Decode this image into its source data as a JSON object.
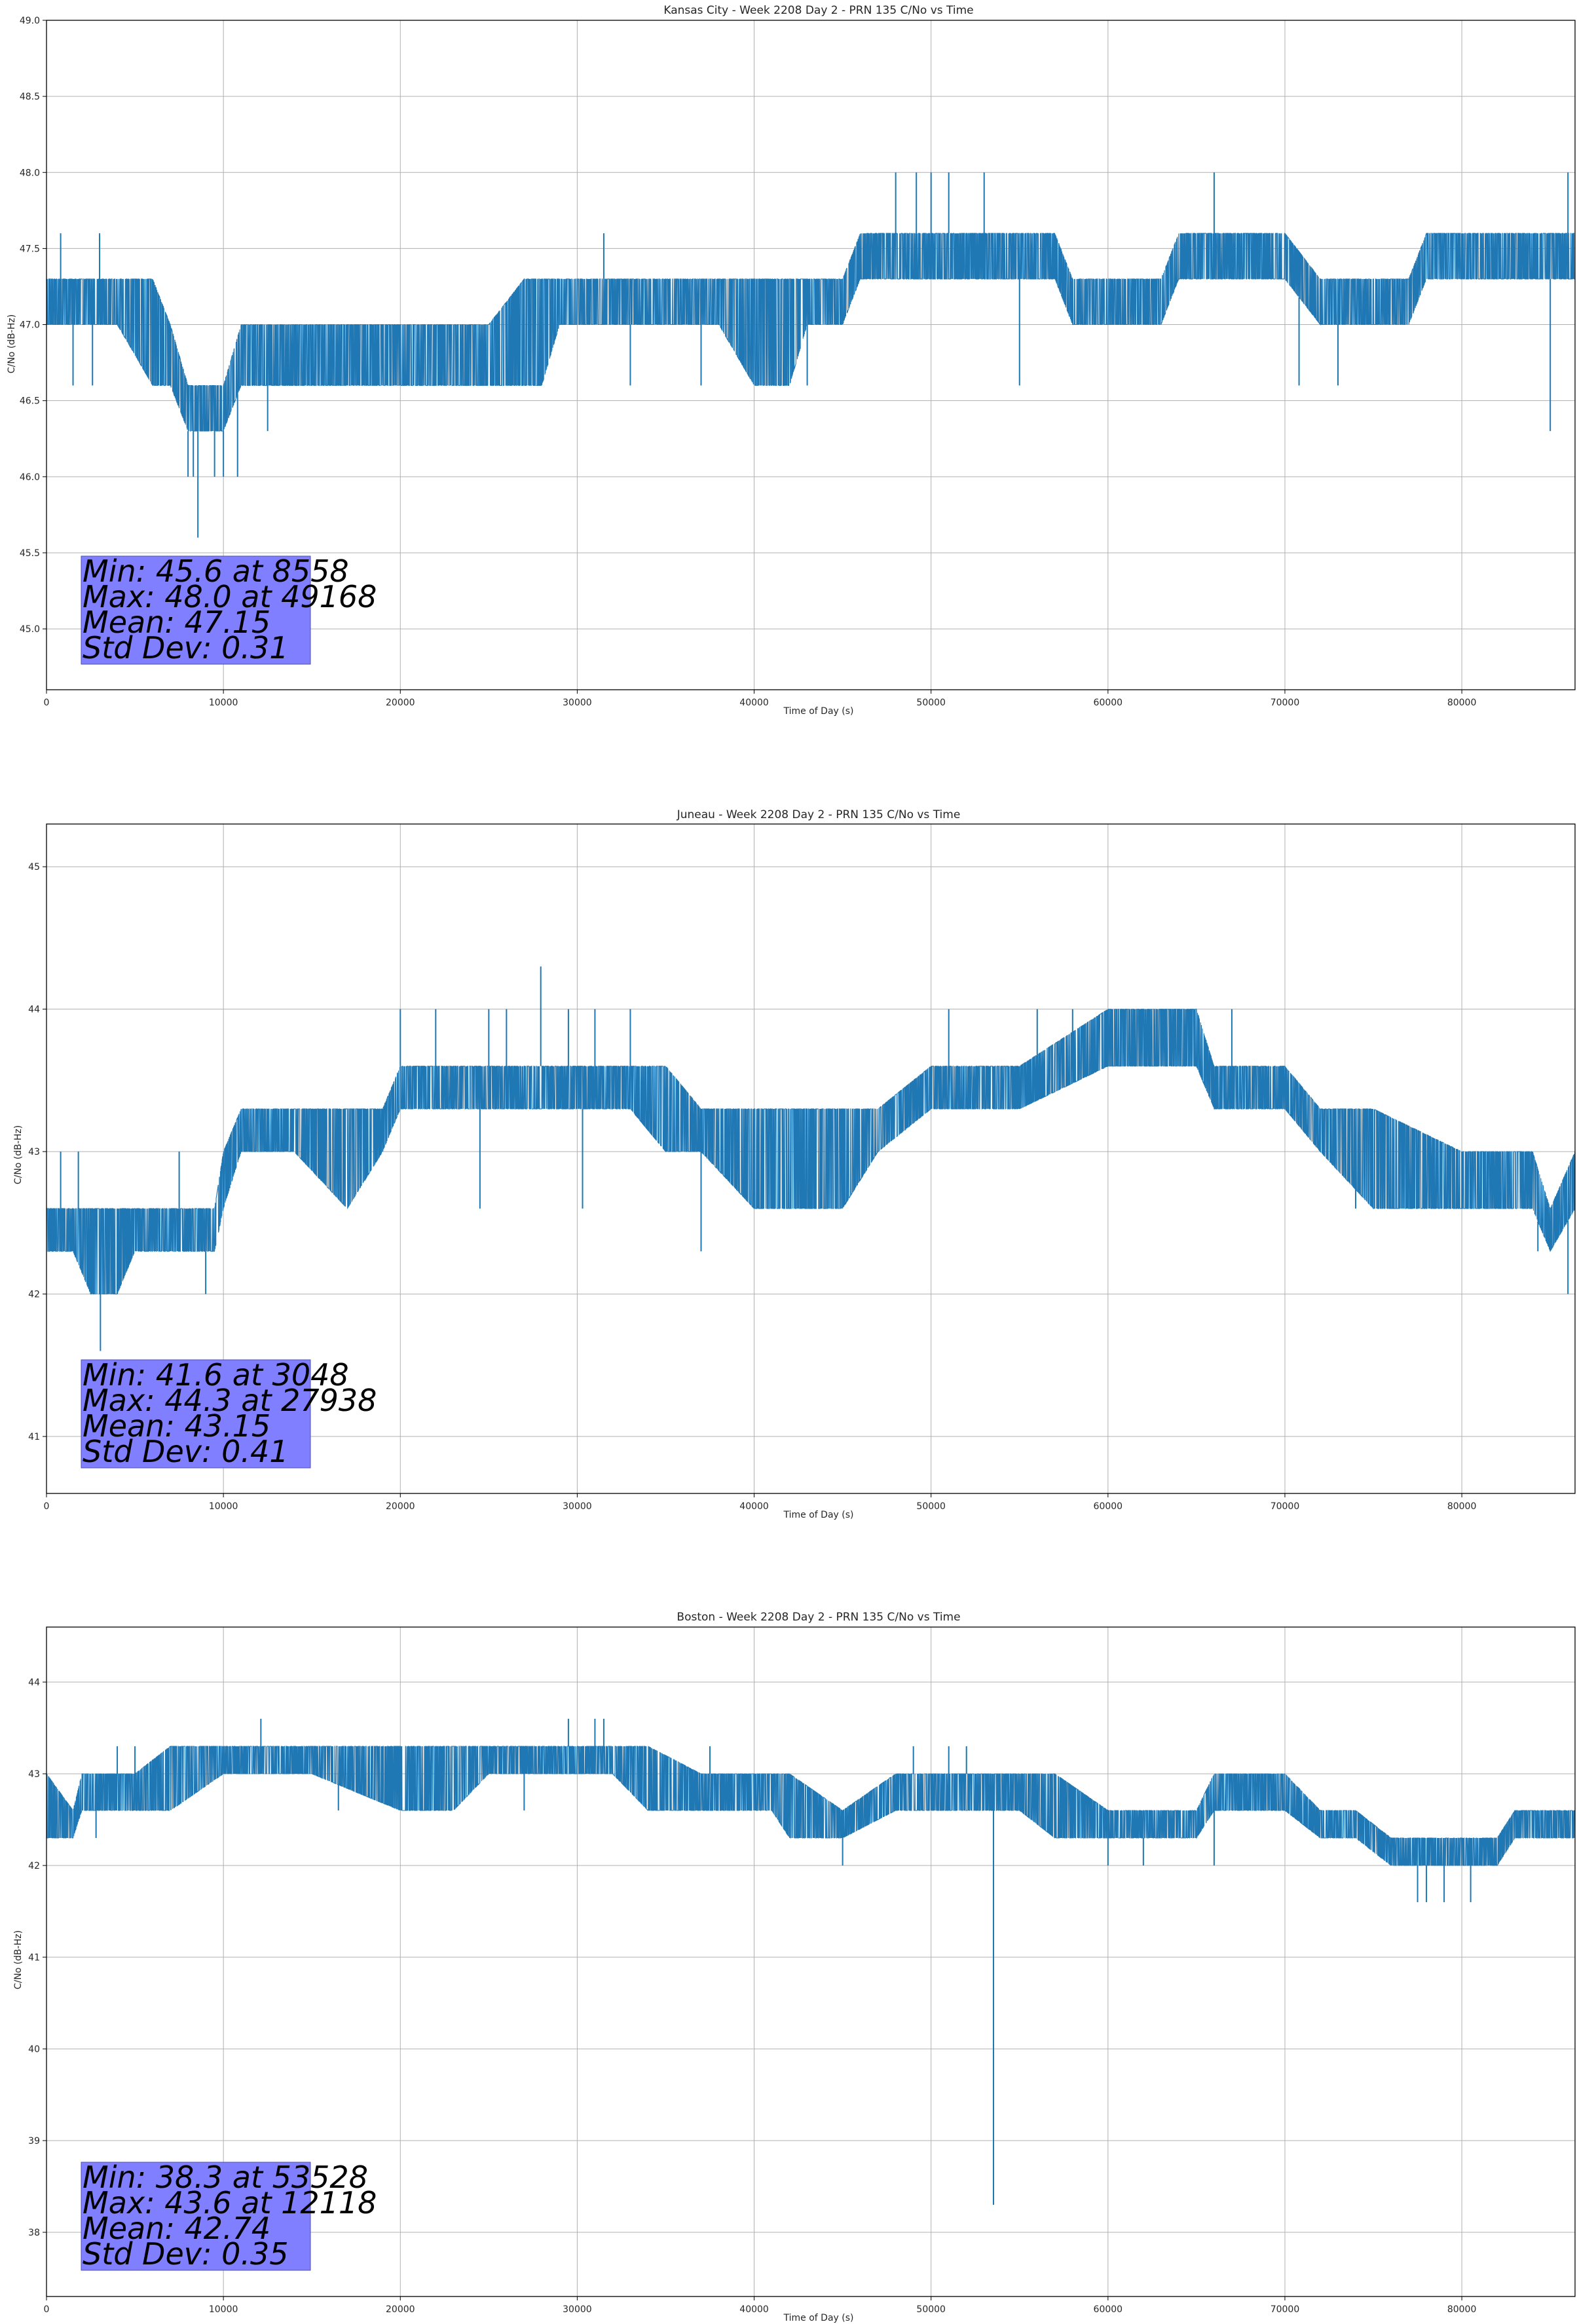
{
  "chart_data": [
    {
      "type": "line",
      "title": "Kansas City - Week 2208 Day 2 - PRN 135 C/No vs Time",
      "xlabel": "Time of Day (s)",
      "ylabel": "C/No (dB-Hz)",
      "xlim": [
        0,
        86400
      ],
      "ylim": [
        44.6,
        49.0
      ],
      "xticks": [
        0,
        10000,
        20000,
        30000,
        40000,
        50000,
        60000,
        70000,
        80000
      ],
      "yticks": [
        45.0,
        45.5,
        46.0,
        46.5,
        47.0,
        47.5,
        48.0,
        48.5,
        49.0
      ],
      "ytick_labels": [
        "45.0",
        "45.5",
        "46.0",
        "46.5",
        "47.0",
        "47.5",
        "48.0",
        "48.5",
        "49.0"
      ],
      "grid": true,
      "line_color": "#1f77b4",
      "series": [
        {
          "name": "C/No",
          "band": [
            [
              0,
              47.0,
              47.3
            ],
            [
              2000,
              47.0,
              47.3
            ],
            [
              4000,
              47.0,
              47.3
            ],
            [
              6000,
              46.6,
              47.3
            ],
            [
              7000,
              46.6,
              47.0
            ],
            [
              8000,
              46.3,
              46.6
            ],
            [
              9000,
              46.3,
              46.6
            ],
            [
              10000,
              46.3,
              46.6
            ],
            [
              11000,
              46.6,
              47.0
            ],
            [
              12000,
              46.6,
              47.0
            ],
            [
              14000,
              46.6,
              47.0
            ],
            [
              17000,
              46.6,
              47.0
            ],
            [
              20000,
              46.6,
              47.0
            ],
            [
              23000,
              46.6,
              47.0
            ],
            [
              25000,
              46.6,
              47.0
            ],
            [
              27000,
              46.6,
              47.3
            ],
            [
              28000,
              46.6,
              47.3
            ],
            [
              29000,
              47.0,
              47.3
            ],
            [
              32000,
              47.0,
              47.3
            ],
            [
              35000,
              47.0,
              47.3
            ],
            [
              38000,
              47.0,
              47.3
            ],
            [
              40000,
              46.6,
              47.3
            ],
            [
              42000,
              46.6,
              47.3
            ],
            [
              43000,
              47.0,
              47.3
            ],
            [
              45000,
              47.0,
              47.3
            ],
            [
              46000,
              47.3,
              47.6
            ],
            [
              50000,
              47.3,
              47.6
            ],
            [
              55000,
              47.3,
              47.6
            ],
            [
              57000,
              47.3,
              47.6
            ],
            [
              58000,
              47.0,
              47.3
            ],
            [
              63000,
              47.0,
              47.3
            ],
            [
              64000,
              47.3,
              47.6
            ],
            [
              70000,
              47.3,
              47.6
            ],
            [
              72000,
              47.0,
              47.3
            ],
            [
              75000,
              47.0,
              47.3
            ],
            [
              77000,
              47.0,
              47.3
            ],
            [
              78000,
              47.3,
              47.6
            ],
            [
              82000,
              47.3,
              47.6
            ],
            [
              86400,
              47.3,
              47.6
            ]
          ],
          "excursions": [
            [
              800,
              47.6
            ],
            [
              1500,
              46.6
            ],
            [
              2600,
              46.6
            ],
            [
              3000,
              47.6
            ],
            [
              5500,
              47.3
            ],
            [
              8000,
              46.0
            ],
            [
              8300,
              46.0
            ],
            [
              8558,
              45.6
            ],
            [
              9500,
              46.0
            ],
            [
              10000,
              46.0
            ],
            [
              10800,
              46.0
            ],
            [
              12500,
              46.3
            ],
            [
              31500,
              47.6
            ],
            [
              33000,
              46.6
            ],
            [
              37000,
              46.6
            ],
            [
              43000,
              46.6
            ],
            [
              48000,
              48.0
            ],
            [
              49168,
              48.0
            ],
            [
              50000,
              48.0
            ],
            [
              51000,
              48.0
            ],
            [
              53000,
              48.0
            ],
            [
              55000,
              46.6
            ],
            [
              66000,
              48.0
            ],
            [
              70800,
              46.6
            ],
            [
              73000,
              46.6
            ],
            [
              85000,
              46.3
            ],
            [
              86000,
              48.0
            ]
          ]
        }
      ],
      "annotation": [
        "Min: 45.6 at 8558",
        "Max: 48.0 at 49168",
        "Mean: 47.15",
        "Std Dev: 0.31"
      ]
    },
    {
      "type": "line",
      "title": "Juneau - Week 2208 Day 2 - PRN 135 C/No vs Time",
      "xlabel": "Time of Day (s)",
      "ylabel": "C/No (dB-Hz)",
      "xlim": [
        0,
        86400
      ],
      "ylim": [
        40.6,
        45.3
      ],
      "xticks": [
        0,
        10000,
        20000,
        30000,
        40000,
        50000,
        60000,
        70000,
        80000
      ],
      "yticks": [
        41,
        42,
        43,
        44,
        45
      ],
      "ytick_labels": [
        "41",
        "42",
        "43",
        "44",
        "45"
      ],
      "grid": true,
      "line_color": "#1f77b4",
      "series": [
        {
          "name": "C/No",
          "band": [
            [
              0,
              42.3,
              42.6
            ],
            [
              1500,
              42.3,
              42.6
            ],
            [
              2500,
              42.0,
              42.6
            ],
            [
              4000,
              42.0,
              42.6
            ],
            [
              5000,
              42.3,
              42.6
            ],
            [
              9500,
              42.3,
              42.6
            ],
            [
              10000,
              42.6,
              43.0
            ],
            [
              11000,
              43.0,
              43.3
            ],
            [
              14000,
              43.0,
              43.3
            ],
            [
              17000,
              42.6,
              43.3
            ],
            [
              19000,
              43.0,
              43.3
            ],
            [
              20000,
              43.3,
              43.6
            ],
            [
              25000,
              43.3,
              43.6
            ],
            [
              27000,
              43.3,
              43.6
            ],
            [
              30000,
              43.3,
              43.6
            ],
            [
              33000,
              43.3,
              43.6
            ],
            [
              35000,
              43.0,
              43.6
            ],
            [
              37000,
              43.0,
              43.3
            ],
            [
              40000,
              42.6,
              43.3
            ],
            [
              45000,
              42.6,
              43.3
            ],
            [
              47000,
              43.0,
              43.3
            ],
            [
              50000,
              43.3,
              43.6
            ],
            [
              55000,
              43.3,
              43.6
            ],
            [
              60000,
              43.6,
              44.0
            ],
            [
              65000,
              43.6,
              44.0
            ],
            [
              66000,
              43.3,
              43.6
            ],
            [
              70000,
              43.3,
              43.6
            ],
            [
              72000,
              43.0,
              43.3
            ],
            [
              75000,
              42.6,
              43.3
            ],
            [
              80000,
              42.6,
              43.0
            ],
            [
              84000,
              42.6,
              43.0
            ],
            [
              85000,
              42.3,
              42.6
            ],
            [
              86400,
              42.6,
              43.0
            ]
          ],
          "excursions": [
            [
              800,
              43.0
            ],
            [
              1800,
              43.0
            ],
            [
              2500,
              42.0
            ],
            [
              3048,
              41.6
            ],
            [
              4000,
              42.0
            ],
            [
              7500,
              43.0
            ],
            [
              9000,
              42.0
            ],
            [
              20000,
              44.0
            ],
            [
              22000,
              44.0
            ],
            [
              25000,
              44.0
            ],
            [
              26000,
              44.0
            ],
            [
              27938,
              44.3
            ],
            [
              29500,
              44.0
            ],
            [
              31000,
              44.0
            ],
            [
              33000,
              44.0
            ],
            [
              24500,
              42.6
            ],
            [
              30300,
              42.6
            ],
            [
              37000,
              42.3
            ],
            [
              51000,
              44.0
            ],
            [
              56000,
              44.0
            ],
            [
              58000,
              44.0
            ],
            [
              61000,
              44.0
            ],
            [
              64000,
              44.0
            ],
            [
              67000,
              44.0
            ],
            [
              74000,
              42.6
            ],
            [
              80000,
              42.6
            ],
            [
              84300,
              42.3
            ],
            [
              86000,
              42.0
            ]
          ]
        }
      ],
      "annotation": [
        "Min: 41.6 at 3048",
        "Max: 44.3 at 27938",
        "Mean: 43.15",
        "Std Dev: 0.41"
      ]
    },
    {
      "type": "line",
      "title": "Boston - Week 2208 Day 2 - PRN 135 C/No vs Time",
      "xlabel": "Time of Day (s)",
      "ylabel": "C/No (dB-Hz)",
      "xlim": [
        0,
        86400
      ],
      "ylim": [
        37.3,
        44.6
      ],
      "xticks": [
        0,
        10000,
        20000,
        30000,
        40000,
        50000,
        60000,
        70000,
        80000
      ],
      "yticks": [
        38,
        39,
        40,
        41,
        42,
        43,
        44
      ],
      "ytick_labels": [
        "38",
        "39",
        "40",
        "41",
        "42",
        "43",
        "44"
      ],
      "grid": true,
      "line_color": "#1f77b4",
      "series": [
        {
          "name": "C/No",
          "band": [
            [
              0,
              42.3,
              43.0
            ],
            [
              1500,
              42.3,
              42.6
            ],
            [
              2000,
              42.6,
              43.0
            ],
            [
              3500,
              42.6,
              43.0
            ],
            [
              5000,
              42.6,
              43.0
            ],
            [
              7000,
              42.6,
              43.3
            ],
            [
              10000,
              43.0,
              43.3
            ],
            [
              15000,
              43.0,
              43.3
            ],
            [
              20000,
              42.6,
              43.3
            ],
            [
              23000,
              42.6,
              43.3
            ],
            [
              25000,
              43.0,
              43.3
            ],
            [
              30000,
              43.0,
              43.3
            ],
            [
              32000,
              43.0,
              43.3
            ],
            [
              34000,
              42.6,
              43.3
            ],
            [
              37000,
              42.6,
              43.0
            ],
            [
              40000,
              42.6,
              43.0
            ],
            [
              41000,
              42.6,
              43.0
            ],
            [
              42000,
              42.3,
              43.0
            ],
            [
              45000,
              42.3,
              42.6
            ],
            [
              48000,
              42.6,
              43.0
            ],
            [
              52000,
              42.6,
              43.0
            ],
            [
              55000,
              42.6,
              43.0
            ],
            [
              57000,
              42.3,
              43.0
            ],
            [
              60000,
              42.3,
              42.6
            ],
            [
              65000,
              42.3,
              42.6
            ],
            [
              66000,
              42.6,
              43.0
            ],
            [
              70000,
              42.6,
              43.0
            ],
            [
              72000,
              42.3,
              42.6
            ],
            [
              74000,
              42.3,
              42.6
            ],
            [
              76000,
              42.0,
              42.3
            ],
            [
              82000,
              42.0,
              42.3
            ],
            [
              83000,
              42.3,
              42.6
            ],
            [
              86400,
              42.3,
              42.6
            ]
          ],
          "excursions": [
            [
              0,
              43.0
            ],
            [
              2800,
              42.3
            ],
            [
              4000,
              43.3
            ],
            [
              5000,
              43.3
            ],
            [
              12118,
              43.6
            ],
            [
              16500,
              42.6
            ],
            [
              22000,
              42.6
            ],
            [
              27000,
              42.6
            ],
            [
              29500,
              43.6
            ],
            [
              31000,
              43.6
            ],
            [
              31500,
              43.6
            ],
            [
              37500,
              43.3
            ],
            [
              45000,
              42.0
            ],
            [
              49000,
              43.3
            ],
            [
              51000,
              43.3
            ],
            [
              52000,
              43.3
            ],
            [
              53528,
              38.3
            ],
            [
              58000,
              42.3
            ],
            [
              60000,
              42.0
            ],
            [
              62000,
              42.0
            ],
            [
              66000,
              42.0
            ],
            [
              77500,
              41.6
            ],
            [
              78000,
              41.6
            ],
            [
              79000,
              41.6
            ],
            [
              80500,
              41.6
            ]
          ]
        }
      ],
      "annotation": [
        "Min: 38.3 at 53528",
        "Max: 43.6 at 12118",
        "Mean: 42.74",
        "Std Dev: 0.35"
      ]
    }
  ],
  "style": {
    "line_color": "#1f77b4",
    "grid_color": "#b0b0b0",
    "annotation_box_color": "#7f7fff",
    "axis_color": "#000000"
  }
}
